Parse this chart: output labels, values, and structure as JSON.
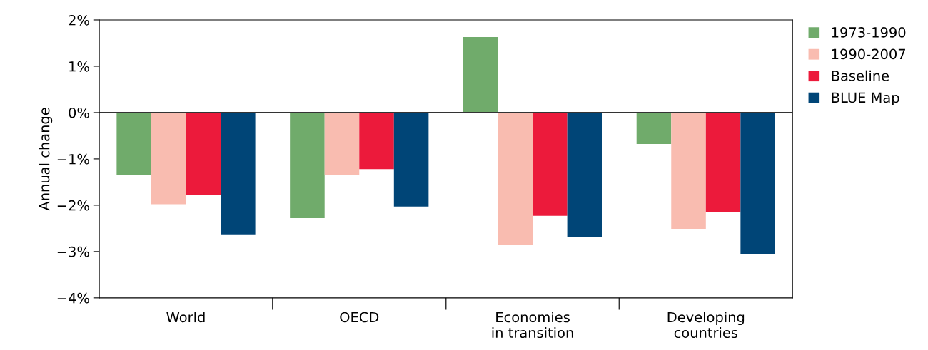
{
  "chart_data": {
    "type": "bar",
    "ylabel": "Annual change",
    "categories": [
      "World",
      "OECD",
      "Economies\nin transition",
      "Developing\ncountries"
    ],
    "series": [
      {
        "name": "1973-1990",
        "color": "#70ab6b",
        "values": [
          -1.34,
          -2.28,
          1.63,
          -0.68
        ]
      },
      {
        "name": "1990-2007",
        "color": "#f9bcb0",
        "values": [
          -1.98,
          -1.34,
          -2.85,
          -2.51
        ]
      },
      {
        "name": "Baseline",
        "color": "#ec1a3b",
        "values": [
          -1.77,
          -1.22,
          -2.23,
          -2.14
        ]
      },
      {
        "name": "BLUE Map",
        "color": "#004577",
        "values": [
          -2.63,
          -2.03,
          -2.68,
          -3.05
        ]
      }
    ],
    "ylim": [
      -4,
      2
    ],
    "yticks": [
      {
        "value": -4,
        "label": "−4%"
      },
      {
        "value": -3,
        "label": "−3%"
      },
      {
        "value": -2,
        "label": "−2%"
      },
      {
        "value": -1,
        "label": "−1%"
      },
      {
        "value": 0,
        "label": "0%"
      },
      {
        "value": 1,
        "label": "1%"
      },
      {
        "value": 2,
        "label": "2%"
      }
    ],
    "ref_lines": [
      {
        "axis": "y",
        "value": 0,
        "label": null,
        "color": "#333333"
      }
    ],
    "grid": false,
    "legend": "right"
  }
}
